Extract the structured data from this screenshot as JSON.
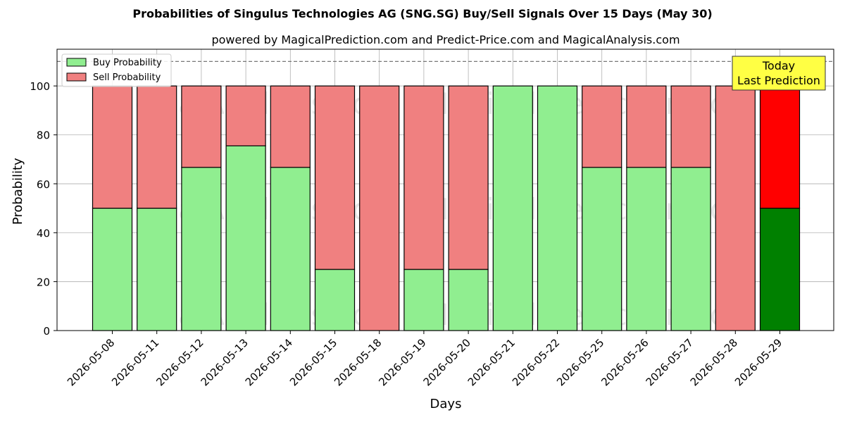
{
  "chart_data": {
    "type": "bar",
    "title": "Probabilities of Singulus Technologies AG (SNG.SG) Buy/Sell Signals Over 15 Days (May 30)",
    "subtitle": "powered by MagicalPrediction.com and Predict-Price.com and MagicalAnalysis.com",
    "xlabel": "Days",
    "ylabel": "Probability",
    "ylim": [
      0,
      115
    ],
    "yticks": [
      0,
      20,
      40,
      60,
      80,
      100
    ],
    "grid": true,
    "stacked": true,
    "reference_line": 110,
    "categories": [
      "2026-05-08",
      "2026-05-11",
      "2026-05-12",
      "2026-05-13",
      "2026-05-14",
      "2026-05-15",
      "2026-05-18",
      "2026-05-19",
      "2026-05-20",
      "2026-05-21",
      "2026-05-22",
      "2026-05-25",
      "2026-05-26",
      "2026-05-27",
      "2026-05-28",
      "2026-05-29"
    ],
    "series": [
      {
        "name": "Buy Probability",
        "values": [
          50,
          50,
          66.7,
          75.5,
          66.7,
          25,
          0,
          25,
          25,
          100,
          100,
          66.7,
          66.7,
          66.7,
          0,
          50
        ]
      },
      {
        "name": "Sell Probability",
        "values": [
          50,
          50,
          33.3,
          24.5,
          33.3,
          75,
          100,
          75,
          75,
          0,
          0,
          33.3,
          33.3,
          33.3,
          100,
          50
        ]
      }
    ],
    "legend": {
      "placement": "top-left",
      "entries": [
        "Buy Probability",
        "Sell Probability"
      ]
    },
    "annotation": {
      "lines": [
        "Today",
        "Last Prediction"
      ],
      "placement": "top-right"
    },
    "watermarks": [
      "MagicalAnalysis.com",
      "MagicalPrediction.com"
    ],
    "colors": {
      "buy": "#90ee90",
      "sell": "#f08080",
      "buy_highlight": "#008000",
      "sell_highlight": "#ff0000",
      "annotation_bg": "#ffff44",
      "grid": "#b0b0b0"
    }
  }
}
